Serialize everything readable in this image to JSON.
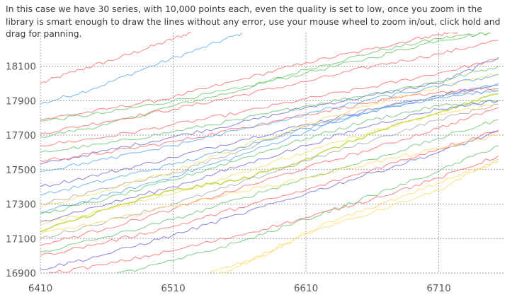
{
  "description": "In this case we have 30 series, with 10,000 points each, even the quality is set to low, once you zoom in the library is smart enough to draw the lines without any error, use your mouse wheel to zoom in/out, click hold and drag for panning.",
  "chart_data": {
    "type": "line",
    "title": "",
    "xlabel": "",
    "ylabel": "",
    "xlim": [
      6410,
      6755
    ],
    "ylim": [
      16888,
      18290
    ],
    "x_ticks": [
      6410,
      6510,
      6610,
      6710
    ],
    "y_ticks": [
      16900,
      17100,
      17300,
      17500,
      17700,
      17900,
      18100
    ],
    "grid": true,
    "legend": "none",
    "interactions": [
      "zoom with mouse wheel",
      "drag to pan"
    ],
    "series": [
      {
        "color": "#ff6b6b",
        "points": [
          [
            6410,
            18000
          ],
          [
            6440,
            18080
          ],
          [
            6470,
            18150
          ],
          [
            6500,
            18230
          ],
          [
            6525,
            18300
          ]
        ]
      },
      {
        "color": "#5aa9f0",
        "points": [
          [
            6410,
            17880
          ],
          [
            6450,
            17970
          ],
          [
            6490,
            18090
          ],
          [
            6530,
            18200
          ],
          [
            6565,
            18300
          ]
        ]
      },
      {
        "color": "#6bc46b",
        "points": [
          [
            6410,
            17690
          ],
          [
            6460,
            17760
          ],
          [
            6510,
            17870
          ],
          [
            6560,
            17960
          ],
          [
            6610,
            18080
          ],
          [
            6660,
            18180
          ],
          [
            6710,
            18260
          ],
          [
            6750,
            18300
          ]
        ]
      },
      {
        "color": "#ff6b6b",
        "points": [
          [
            6410,
            17790
          ],
          [
            6460,
            17850
          ],
          [
            6510,
            17920
          ],
          [
            6560,
            18020
          ],
          [
            6610,
            18120
          ],
          [
            6660,
            18200
          ],
          [
            6700,
            18270
          ],
          [
            6725,
            18300
          ]
        ]
      },
      {
        "color": "#6bc46b",
        "points": [
          [
            6410,
            17780
          ],
          [
            6460,
            17830
          ],
          [
            6510,
            17900
          ],
          [
            6560,
            17970
          ],
          [
            6610,
            18060
          ],
          [
            6660,
            18150
          ],
          [
            6710,
            18250
          ],
          [
            6755,
            18300
          ]
        ]
      },
      {
        "color": "#ff6b6b",
        "points": [
          [
            6410,
            17710
          ],
          [
            6460,
            17780
          ],
          [
            6510,
            17850
          ],
          [
            6560,
            17930
          ],
          [
            6610,
            18010
          ],
          [
            6660,
            18100
          ],
          [
            6710,
            18170
          ],
          [
            6755,
            18250
          ]
        ]
      },
      {
        "color": "#6f6fd6",
        "points": [
          [
            6410,
            17530
          ],
          [
            6460,
            17610
          ],
          [
            6510,
            17690
          ],
          [
            6560,
            17770
          ],
          [
            6610,
            17860
          ],
          [
            6660,
            17930
          ],
          [
            6710,
            18000
          ],
          [
            6755,
            18150
          ]
        ]
      },
      {
        "color": "#ff6b6b",
        "points": [
          [
            6410,
            17640
          ],
          [
            6460,
            17690
          ],
          [
            6510,
            17760
          ],
          [
            6560,
            17830
          ],
          [
            6610,
            17910
          ],
          [
            6660,
            17980
          ],
          [
            6710,
            18060
          ],
          [
            6755,
            18140
          ]
        ]
      },
      {
        "color": "#6bc46b",
        "points": [
          [
            6410,
            17600
          ],
          [
            6460,
            17650
          ],
          [
            6510,
            17720
          ],
          [
            6560,
            17790
          ],
          [
            6610,
            17870
          ],
          [
            6660,
            17940
          ],
          [
            6710,
            18010
          ],
          [
            6755,
            18100
          ]
        ]
      },
      {
        "color": "#6f6fd6",
        "points": [
          [
            6410,
            17400
          ],
          [
            6460,
            17480
          ],
          [
            6510,
            17570
          ],
          [
            6560,
            17670
          ],
          [
            6610,
            17760
          ],
          [
            6660,
            17850
          ],
          [
            6710,
            17930
          ],
          [
            6755,
            17990
          ]
        ]
      },
      {
        "color": "#ff6b6b",
        "points": [
          [
            6410,
            17550
          ],
          [
            6460,
            17600
          ],
          [
            6510,
            17660
          ],
          [
            6560,
            17740
          ],
          [
            6610,
            17820
          ],
          [
            6660,
            17890
          ],
          [
            6710,
            17950
          ],
          [
            6755,
            17970
          ]
        ]
      },
      {
        "color": "#5aa9f0",
        "points": [
          [
            6410,
            17250
          ],
          [
            6460,
            17350
          ],
          [
            6510,
            17460
          ],
          [
            6560,
            17580
          ],
          [
            6610,
            17720
          ],
          [
            6660,
            17840
          ],
          [
            6710,
            17920
          ],
          [
            6755,
            18000
          ]
        ]
      },
      {
        "color": "#a9a9a9",
        "points": [
          [
            6410,
            17300
          ],
          [
            6460,
            17390
          ],
          [
            6510,
            17480
          ],
          [
            6560,
            17610
          ],
          [
            6610,
            17750
          ],
          [
            6660,
            17850
          ],
          [
            6710,
            17930
          ],
          [
            6755,
            17960
          ]
        ]
      },
      {
        "color": "#ffd966",
        "points": [
          [
            6410,
            17280
          ],
          [
            6460,
            17380
          ],
          [
            6510,
            17490
          ],
          [
            6560,
            17630
          ],
          [
            6610,
            17760
          ],
          [
            6660,
            17880
          ],
          [
            6710,
            17980
          ],
          [
            6755,
            18060
          ]
        ]
      },
      {
        "color": "#5aa9f0",
        "points": [
          [
            6410,
            17350
          ],
          [
            6460,
            17440
          ],
          [
            6510,
            17530
          ],
          [
            6560,
            17630
          ],
          [
            6610,
            17740
          ],
          [
            6660,
            17840
          ],
          [
            6710,
            17920
          ],
          [
            6755,
            17960
          ]
        ]
      },
      {
        "color": "#6bc46b",
        "points": [
          [
            6410,
            17240
          ],
          [
            6460,
            17330
          ],
          [
            6510,
            17440
          ],
          [
            6560,
            17560
          ],
          [
            6610,
            17680
          ],
          [
            6660,
            17790
          ],
          [
            6710,
            17870
          ],
          [
            6755,
            17900
          ]
        ]
      },
      {
        "color": "#b8d432",
        "points": [
          [
            6410,
            17140
          ],
          [
            6460,
            17270
          ],
          [
            6510,
            17380
          ],
          [
            6560,
            17440
          ],
          [
            6610,
            17560
          ],
          [
            6660,
            17710
          ],
          [
            6710,
            17830
          ],
          [
            6755,
            17940
          ]
        ]
      },
      {
        "color": "#6f6fd6",
        "points": [
          [
            6410,
            17200
          ],
          [
            6460,
            17300
          ],
          [
            6510,
            17400
          ],
          [
            6560,
            17520
          ],
          [
            6610,
            17640
          ],
          [
            6660,
            17760
          ],
          [
            6710,
            17850
          ],
          [
            6755,
            17900
          ]
        ]
      },
      {
        "color": "#ff6b6b",
        "points": [
          [
            6410,
            17060
          ],
          [
            6460,
            17160
          ],
          [
            6510,
            17270
          ],
          [
            6560,
            17390
          ],
          [
            6610,
            17510
          ],
          [
            6660,
            17620
          ],
          [
            6710,
            17740
          ],
          [
            6755,
            17860
          ]
        ]
      },
      {
        "color": "#a9a9a9",
        "points": [
          [
            6410,
            17100
          ],
          [
            6460,
            17200
          ],
          [
            6510,
            17300
          ],
          [
            6560,
            17420
          ],
          [
            6610,
            17550
          ],
          [
            6660,
            17670
          ],
          [
            6710,
            17790
          ],
          [
            6755,
            17880
          ]
        ]
      },
      {
        "color": "#ffd966",
        "points": [
          [
            6410,
            17180
          ],
          [
            6460,
            17270
          ],
          [
            6510,
            17360
          ],
          [
            6560,
            17480
          ],
          [
            6610,
            17600
          ],
          [
            6660,
            17720
          ],
          [
            6710,
            17820
          ],
          [
            6755,
            17880
          ]
        ]
      },
      {
        "color": "#6bc46b",
        "points": [
          [
            6410,
            17020
          ],
          [
            6460,
            17110
          ],
          [
            6510,
            17210
          ],
          [
            6560,
            17330
          ],
          [
            6610,
            17450
          ],
          [
            6660,
            17560
          ],
          [
            6710,
            17680
          ],
          [
            6755,
            17790
          ]
        ]
      },
      {
        "color": "#ff6b6b",
        "points": [
          [
            6410,
            17000
          ],
          [
            6460,
            17080
          ],
          [
            6510,
            17170
          ],
          [
            6560,
            17280
          ],
          [
            6610,
            17380
          ],
          [
            6660,
            17500
          ],
          [
            6710,
            17620
          ],
          [
            6755,
            17730
          ]
        ]
      },
      {
        "color": "#6f6fd6",
        "points": [
          [
            6410,
            16920
          ],
          [
            6460,
            17010
          ],
          [
            6510,
            17120
          ],
          [
            6560,
            17240
          ],
          [
            6610,
            17360
          ],
          [
            6660,
            17480
          ],
          [
            6710,
            17600
          ],
          [
            6755,
            17720
          ]
        ]
      },
      {
        "color": "#ffd966",
        "points": [
          [
            6410,
            17130
          ],
          [
            6460,
            17200
          ],
          [
            6510,
            17290
          ],
          [
            6560,
            17370
          ],
          [
            6610,
            17450
          ],
          [
            6660,
            17540
          ],
          [
            6710,
            17620
          ],
          [
            6755,
            17700
          ]
        ]
      },
      {
        "color": "#ff6b6b",
        "points": [
          [
            6410,
            16890
          ],
          [
            6460,
            16950
          ],
          [
            6510,
            17030
          ],
          [
            6560,
            17120
          ],
          [
            6610,
            17220
          ],
          [
            6660,
            17330
          ],
          [
            6710,
            17450
          ],
          [
            6755,
            17580
          ]
        ]
      },
      {
        "color": "#6bc46b",
        "points": [
          [
            6460,
            16880
          ],
          [
            6510,
            16970
          ],
          [
            6560,
            17080
          ],
          [
            6610,
            17210
          ],
          [
            6660,
            17350
          ],
          [
            6710,
            17490
          ],
          [
            6755,
            17640
          ]
        ]
      },
      {
        "color": "#ffd966",
        "points": [
          [
            6530,
            16880
          ],
          [
            6570,
            16980
          ],
          [
            6610,
            17130
          ],
          [
            6660,
            17250
          ],
          [
            6710,
            17380
          ],
          [
            6755,
            17560
          ]
        ]
      },
      {
        "color": "#ffd966",
        "points": [
          [
            6540,
            16880
          ],
          [
            6580,
            17000
          ],
          [
            6620,
            17170
          ],
          [
            6670,
            17310
          ],
          [
            6720,
            17450
          ],
          [
            6755,
            17550
          ]
        ]
      },
      {
        "color": "#5aa9f0",
        "points": [
          [
            6410,
            17490
          ],
          [
            6460,
            17560
          ],
          [
            6510,
            17640
          ],
          [
            6560,
            17730
          ],
          [
            6610,
            17820
          ],
          [
            6660,
            17910
          ],
          [
            6710,
            17980
          ],
          [
            6755,
            18050
          ]
        ]
      }
    ]
  }
}
